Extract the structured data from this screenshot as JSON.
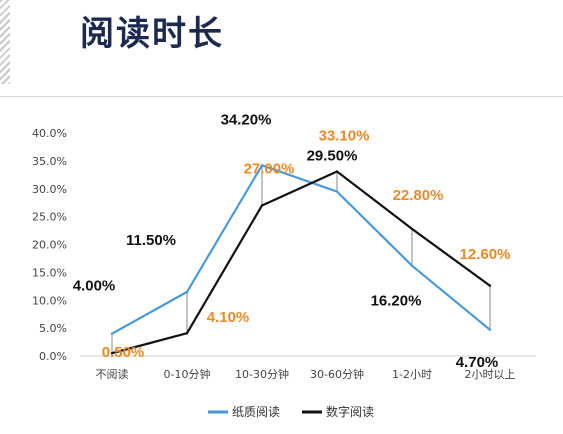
{
  "page": {
    "title": "阅读时长"
  },
  "colors": {
    "paper": "#4a9ad8",
    "digital": "#111111",
    "paper_label": "#111111",
    "digital_label": "#ef8a22",
    "axis": "#444444",
    "leader": "#888888"
  },
  "chart_data": {
    "type": "line",
    "title": "",
    "xlabel": "",
    "ylabel": "",
    "categories": [
      "不阅读",
      "0-10分钟",
      "10-30分钟",
      "30-60分钟",
      "1-2小时",
      "2小时以上"
    ],
    "ylim": [
      0,
      40
    ],
    "y_ticks": [
      "0.0%",
      "5.0%",
      "10.0%",
      "15.0%",
      "20.0%",
      "25.0%",
      "30.0%",
      "35.0%",
      "40.0%"
    ],
    "grid": false,
    "legend_position": "bottom",
    "series": [
      {
        "name": "纸质阅读",
        "values": [
          4.0,
          11.5,
          34.2,
          29.5,
          16.2,
          4.7
        ],
        "labels": [
          "4.00%",
          "11.50%",
          "34.20%",
          "29.50%",
          "16.20%",
          "4.70%"
        ]
      },
      {
        "name": "数字阅读",
        "values": [
          0.5,
          4.1,
          27.0,
          33.1,
          22.8,
          12.6
        ],
        "labels": [
          "0.50%",
          "4.10%",
          "27.00%",
          "33.10%",
          "22.80%",
          "12.60%"
        ]
      }
    ]
  }
}
